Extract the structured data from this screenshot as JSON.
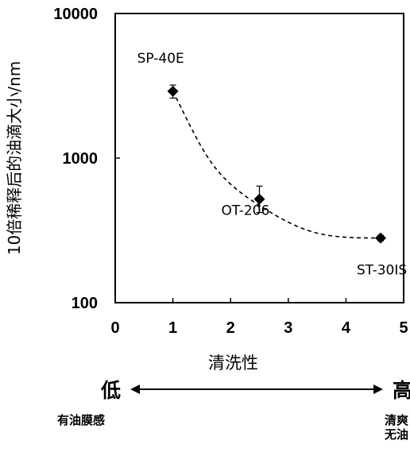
{
  "chart_data": {
    "type": "scatter",
    "ylabel": "10倍稀释后的油滴大小/nm",
    "xlabel": "清洗性",
    "xlim": [
      0,
      5
    ],
    "ylim": [
      100,
      10000
    ],
    "yscale": "log",
    "xticks": [
      "0",
      "1",
      "2",
      "3",
      "4",
      "5"
    ],
    "yticks": [
      "100",
      "1000",
      "10000"
    ],
    "grid": false,
    "points": [
      {
        "label": "SP-40E",
        "x": 1.0,
        "y": 2900,
        "err_low": 2600,
        "err_high": 3200
      },
      {
        "label": "OT-206",
        "x": 2.5,
        "y": 520,
        "err_low": 420,
        "err_high": 640
      },
      {
        "label": "ST-30IS",
        "x": 4.6,
        "y": 280,
        "err_low": 268,
        "err_high": 292
      }
    ],
    "trendline": "dashed curve"
  },
  "scale": {
    "low_label": "低",
    "high_label": "高",
    "low_desc": "有油膜感",
    "high_desc": "清爽\n无油"
  }
}
